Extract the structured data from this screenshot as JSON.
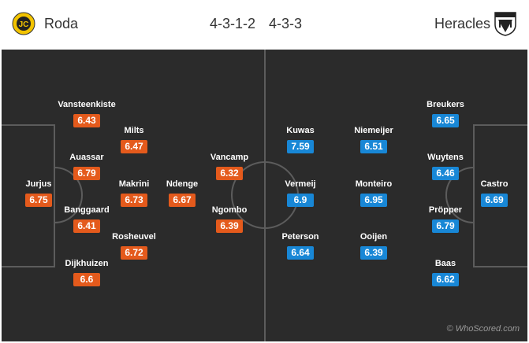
{
  "header": {
    "home_team": "Roda",
    "home_formation": "4-3-1-2",
    "away_formation": "4-3-3",
    "away_team": "Heracles",
    "home_logo": "roda-jc-crest",
    "away_logo": "heracles-crest",
    "home_logo_text": "JC"
  },
  "colors": {
    "home_rating": "#e45a1c",
    "away_rating": "#1887d6",
    "pitch": "#2b2b2b",
    "pitch_lines": "#5c5c5c"
  },
  "home_players": [
    {
      "name": "Jurjus",
      "rating": "6.75"
    },
    {
      "name": "Vansteenkiste",
      "rating": "6.43"
    },
    {
      "name": "Auassar",
      "rating": "6.79"
    },
    {
      "name": "Banggaard",
      "rating": "6.41"
    },
    {
      "name": "Dijkhuizen",
      "rating": "6.6"
    },
    {
      "name": "Milts",
      "rating": "6.47"
    },
    {
      "name": "Makrini",
      "rating": "6.73"
    },
    {
      "name": "Rosheuvel",
      "rating": "6.72"
    },
    {
      "name": "Ndenge",
      "rating": "6.67"
    },
    {
      "name": "Vancamp",
      "rating": "6.32"
    },
    {
      "name": "Ngombo",
      "rating": "6.39"
    }
  ],
  "away_players": [
    {
      "name": "Kuwas",
      "rating": "7.59"
    },
    {
      "name": "Vermeij",
      "rating": "6.9"
    },
    {
      "name": "Peterson",
      "rating": "6.64"
    },
    {
      "name": "Niemeijer",
      "rating": "6.51"
    },
    {
      "name": "Monteiro",
      "rating": "6.95"
    },
    {
      "name": "Ooijen",
      "rating": "6.39"
    },
    {
      "name": "Breukers",
      "rating": "6.65"
    },
    {
      "name": "Wuytens",
      "rating": "6.46"
    },
    {
      "name": "Pröpper",
      "rating": "6.79"
    },
    {
      "name": "Baas",
      "rating": "6.62"
    },
    {
      "name": "Castro",
      "rating": "6.69"
    }
  ],
  "watermark": "© WhoScored.com"
}
